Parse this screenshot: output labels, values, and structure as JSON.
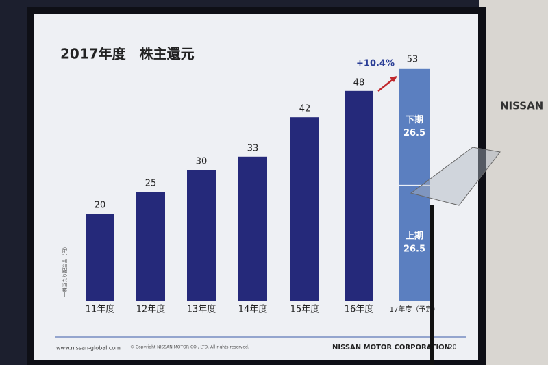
{
  "chart_data": {
    "type": "bar",
    "title": "2017年度　株主還元",
    "y_label": "一株当たり配当金（円）",
    "categories": [
      "11年度",
      "12年度",
      "13年度",
      "14年度",
      "15年度",
      "16年度",
      "17年度（予定）"
    ],
    "values": [
      20,
      25,
      30,
      33,
      42,
      48,
      null
    ],
    "color": "#25297a",
    "stack": [
      {
        "name": "上期",
        "value": 26.5,
        "color": "#5b7fc0"
      },
      {
        "name": "下期",
        "value": 26.5,
        "color": "#5b7fc0"
      }
    ],
    "stack_total": 53,
    "annotation": "+10.4%",
    "ylim": [
      0,
      60
    ]
  },
  "footer": {
    "url": "www.nissan-global.com",
    "copyright": "© Copyright NISSAN MOTOR CO., LTD. All rights reserved.",
    "company": "NISSAN MOTOR CORPORATION",
    "page": "20"
  },
  "background_sign": "NISSAN"
}
